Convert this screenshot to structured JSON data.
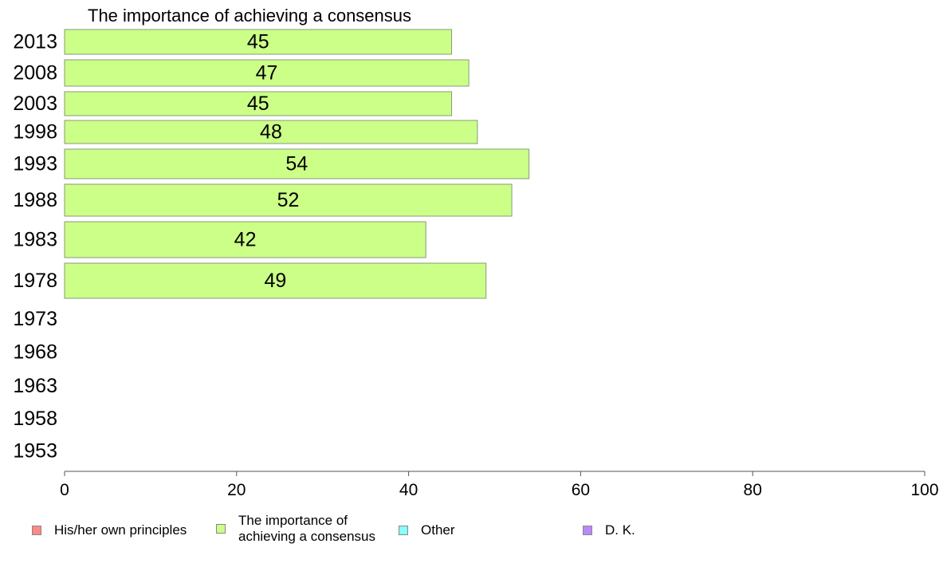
{
  "chart_data": {
    "type": "bar",
    "orientation": "horizontal",
    "title": "The importance of achieving a consensus",
    "categories": [
      "2013",
      "2008",
      "2003",
      "1998",
      "1993",
      "1988",
      "1983",
      "1978",
      "1973",
      "1968",
      "1963",
      "1958",
      "1953"
    ],
    "series": [
      {
        "name": "The importance of achieving a consensus",
        "color": "#ccff88",
        "values": [
          45,
          47,
          45,
          48,
          54,
          52,
          42,
          49,
          null,
          null,
          null,
          null,
          null
        ]
      }
    ],
    "xlim": [
      0,
      100
    ],
    "xticks": [
      0,
      20,
      40,
      60,
      80,
      100
    ],
    "xlabel": "",
    "ylabel": "",
    "grid": false,
    "legend_position": "bottom"
  },
  "legend": [
    {
      "label": "His/her own principles",
      "color": "#ff8888"
    },
    {
      "label": "The importance of achieving a consensus",
      "color": "#ccff88"
    },
    {
      "label": "Other",
      "color": "#88ffff"
    },
    {
      "label": "D. K.",
      "color": "#bb88ff"
    }
  ]
}
